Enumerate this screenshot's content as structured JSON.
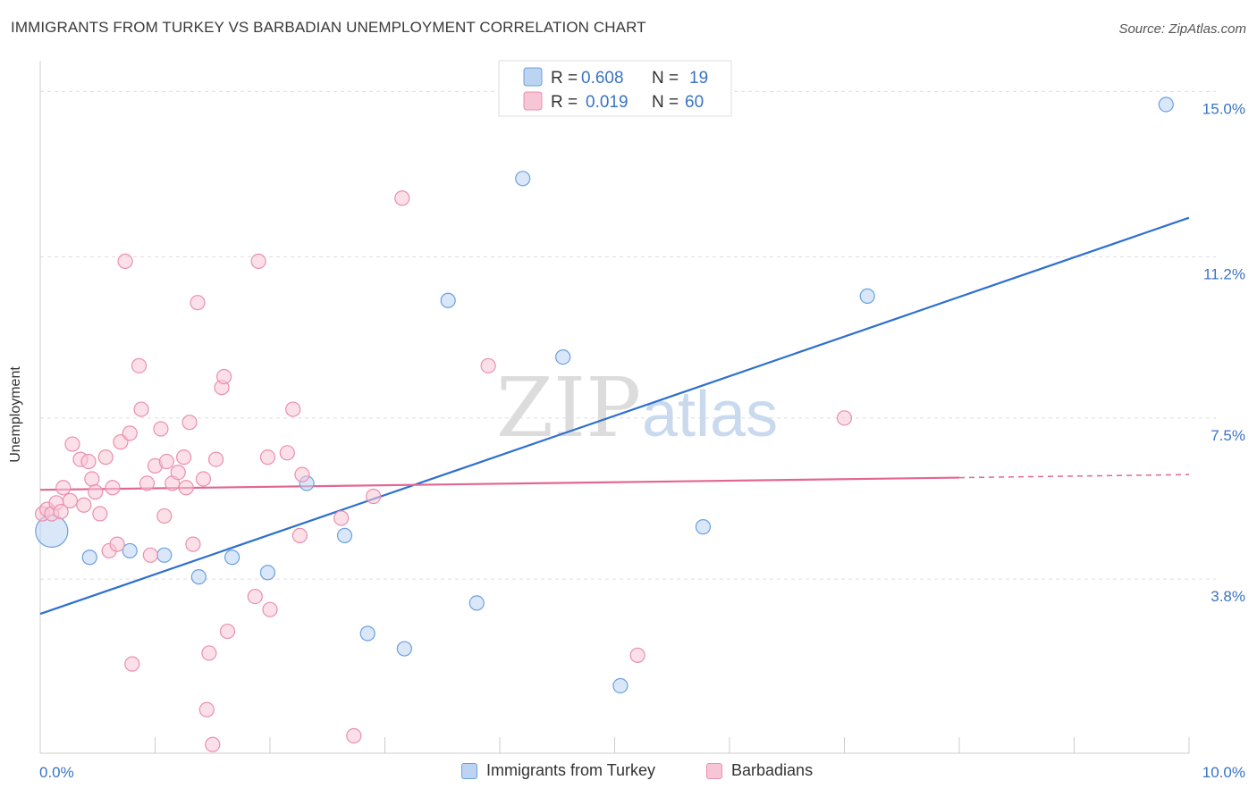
{
  "header": {
    "title": "IMMIGRANTS FROM TURKEY VS BARBADIAN UNEMPLOYMENT CORRELATION CHART",
    "source": "Source: ZipAtlas.com"
  },
  "colors": {
    "blue": "#6aa0e0",
    "blue_fill": "#bcd4f2",
    "blue_line": "#2e6fcf",
    "pink": "#ea8fb0",
    "pink_fill": "#f7c6d6",
    "pink_line": "#e2678f",
    "tick": "#3a73c4"
  },
  "legend": {
    "rows": [
      {
        "r_label": "R =",
        "r_value": "0.608",
        "n_label": "N =",
        "n_value": "19"
      },
      {
        "r_label": "R =",
        "r_value": "0.019",
        "n_label": "N =",
        "n_value": "60"
      }
    ]
  },
  "watermark": {
    "zip": "ZIP",
    "atlas": "atlas"
  },
  "chart_data": {
    "type": "scatter",
    "title": "IMMIGRANTS FROM TURKEY VS BARBADIAN UNEMPLOYMENT CORRELATION CHART",
    "xlabel": "",
    "ylabel": "Unemployment",
    "xlim": [
      0,
      10
    ],
    "ylim": [
      -0.2,
      15.5
    ],
    "x_tick_labels": [
      "0.0%",
      "10.0%"
    ],
    "y_ticks": [
      3.8,
      7.5,
      11.2,
      15.0
    ],
    "y_tick_labels": [
      "3.8%",
      "7.5%",
      "11.2%",
      "15.0%"
    ],
    "grid": true,
    "legend_position": "top-center",
    "series": [
      {
        "name": "Immigrants from Turkey",
        "color": "blue",
        "r": 0.608,
        "n": 19,
        "trend": {
          "x": [
            0,
            10
          ],
          "y": [
            3.0,
            12.1
          ],
          "dashed_from": null
        },
        "points": [
          {
            "x": 0.1,
            "y": 4.9,
            "big": true
          },
          {
            "x": 0.43,
            "y": 4.3
          },
          {
            "x": 0.78,
            "y": 4.45
          },
          {
            "x": 1.08,
            "y": 4.35
          },
          {
            "x": 1.38,
            "y": 3.85
          },
          {
            "x": 1.67,
            "y": 4.3
          },
          {
            "x": 1.98,
            "y": 3.95
          },
          {
            "x": 2.32,
            "y": 6.0
          },
          {
            "x": 2.65,
            "y": 4.8
          },
          {
            "x": 2.85,
            "y": 2.55
          },
          {
            "x": 3.17,
            "y": 2.2
          },
          {
            "x": 3.55,
            "y": 10.2
          },
          {
            "x": 3.8,
            "y": 3.25
          },
          {
            "x": 4.2,
            "y": 13.0
          },
          {
            "x": 4.55,
            "y": 8.9
          },
          {
            "x": 5.05,
            "y": 1.35
          },
          {
            "x": 5.77,
            "y": 5.0
          },
          {
            "x": 7.2,
            "y": 10.3
          },
          {
            "x": 9.8,
            "y": 14.7
          }
        ]
      },
      {
        "name": "Barbadians",
        "color": "pink",
        "r": 0.019,
        "n": 60,
        "trend": {
          "x": [
            0,
            10
          ],
          "y": [
            5.85,
            6.2
          ],
          "dashed_from": 8.0
        },
        "points": [
          {
            "x": 0.02,
            "y": 5.3
          },
          {
            "x": 0.06,
            "y": 5.4
          },
          {
            "x": 0.1,
            "y": 5.3
          },
          {
            "x": 0.14,
            "y": 5.55
          },
          {
            "x": 0.18,
            "y": 5.35
          },
          {
            "x": 0.2,
            "y": 5.9
          },
          {
            "x": 0.26,
            "y": 5.6
          },
          {
            "x": 0.28,
            "y": 6.9
          },
          {
            "x": 0.35,
            "y": 6.55
          },
          {
            "x": 0.38,
            "y": 5.5
          },
          {
            "x": 0.42,
            "y": 6.5
          },
          {
            "x": 0.45,
            "y": 6.1
          },
          {
            "x": 0.48,
            "y": 5.8
          },
          {
            "x": 0.52,
            "y": 5.3
          },
          {
            "x": 0.57,
            "y": 6.6
          },
          {
            "x": 0.6,
            "y": 4.45
          },
          {
            "x": 0.63,
            "y": 5.9
          },
          {
            "x": 0.67,
            "y": 4.6
          },
          {
            "x": 0.7,
            "y": 6.95
          },
          {
            "x": 0.74,
            "y": 11.1
          },
          {
            "x": 0.78,
            "y": 7.15
          },
          {
            "x": 0.8,
            "y": 1.85
          },
          {
            "x": 0.86,
            "y": 8.7
          },
          {
            "x": 0.88,
            "y": 7.7
          },
          {
            "x": 0.93,
            "y": 6.0
          },
          {
            "x": 0.96,
            "y": 4.35
          },
          {
            "x": 1.0,
            "y": 6.4
          },
          {
            "x": 1.05,
            "y": 7.25
          },
          {
            "x": 1.08,
            "y": 5.25
          },
          {
            "x": 1.1,
            "y": 6.5
          },
          {
            "x": 1.15,
            "y": 6.0
          },
          {
            "x": 1.2,
            "y": 6.25
          },
          {
            "x": 1.25,
            "y": 6.6
          },
          {
            "x": 1.27,
            "y": 5.9
          },
          {
            "x": 1.3,
            "y": 7.4
          },
          {
            "x": 1.33,
            "y": 4.6
          },
          {
            "x": 1.37,
            "y": 10.15
          },
          {
            "x": 1.42,
            "y": 6.1
          },
          {
            "x": 1.45,
            "y": 0.8
          },
          {
            "x": 1.47,
            "y": 2.1
          },
          {
            "x": 1.5,
            "y": 0.0
          },
          {
            "x": 1.53,
            "y": 6.55
          },
          {
            "x": 1.58,
            "y": 8.2
          },
          {
            "x": 1.6,
            "y": 8.45
          },
          {
            "x": 1.63,
            "y": 2.6
          },
          {
            "x": 1.87,
            "y": 3.4
          },
          {
            "x": 1.9,
            "y": 11.1
          },
          {
            "x": 1.98,
            "y": 6.6
          },
          {
            "x": 2.0,
            "y": 3.1
          },
          {
            "x": 2.15,
            "y": 6.7
          },
          {
            "x": 2.2,
            "y": 7.7
          },
          {
            "x": 2.26,
            "y": 4.8
          },
          {
            "x": 2.28,
            "y": 6.2
          },
          {
            "x": 2.62,
            "y": 5.2
          },
          {
            "x": 2.73,
            "y": 0.2
          },
          {
            "x": 2.9,
            "y": 5.7
          },
          {
            "x": 3.15,
            "y": 12.55
          },
          {
            "x": 3.9,
            "y": 8.7
          },
          {
            "x": 5.2,
            "y": 2.05
          },
          {
            "x": 7.0,
            "y": 7.5
          }
        ]
      }
    ]
  },
  "bottom_legend": {
    "items": [
      {
        "label": "Immigrants from Turkey"
      },
      {
        "label": "Barbadians"
      }
    ]
  }
}
